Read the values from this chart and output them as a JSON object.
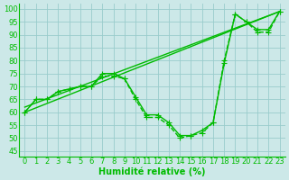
{
  "xlabel": "Humidité relative (%)",
  "background_color": "#cce8e8",
  "grid_color": "#99cccc",
  "line_color": "#00bb00",
  "xlim": [
    -0.5,
    23.5
  ],
  "ylim": [
    43,
    102
  ],
  "yticks": [
    45,
    50,
    55,
    60,
    65,
    70,
    75,
    80,
    85,
    90,
    95,
    100
  ],
  "xticks": [
    0,
    1,
    2,
    3,
    4,
    5,
    6,
    7,
    8,
    9,
    10,
    11,
    12,
    13,
    14,
    15,
    16,
    17,
    18,
    19,
    20,
    21,
    22,
    23
  ],
  "series_marked_solid": [
    [
      60,
      65,
      65,
      68,
      69,
      70,
      70,
      75,
      75,
      73,
      66,
      59,
      59,
      56,
      51,
      51,
      53,
      56,
      79,
      98,
      95,
      92,
      92,
      99
    ]
  ],
  "series_marked_dashed": [
    [
      60,
      65,
      65,
      68,
      69,
      70,
      70,
      74,
      74,
      73,
      65,
      58,
      58,
      55,
      50,
      51,
      52,
      56,
      80,
      98,
      95,
      91,
      91,
      99
    ]
  ],
  "straight_lines": [
    {
      "x0": 0,
      "y0": 60,
      "x1": 23,
      "y1": 99
    },
    {
      "x0": 0,
      "y0": 62,
      "x1": 23,
      "y1": 99
    }
  ],
  "marker": "+",
  "markersize": 4,
  "linewidth": 1.0,
  "xlabel_fontsize": 7,
  "tick_fontsize": 6
}
